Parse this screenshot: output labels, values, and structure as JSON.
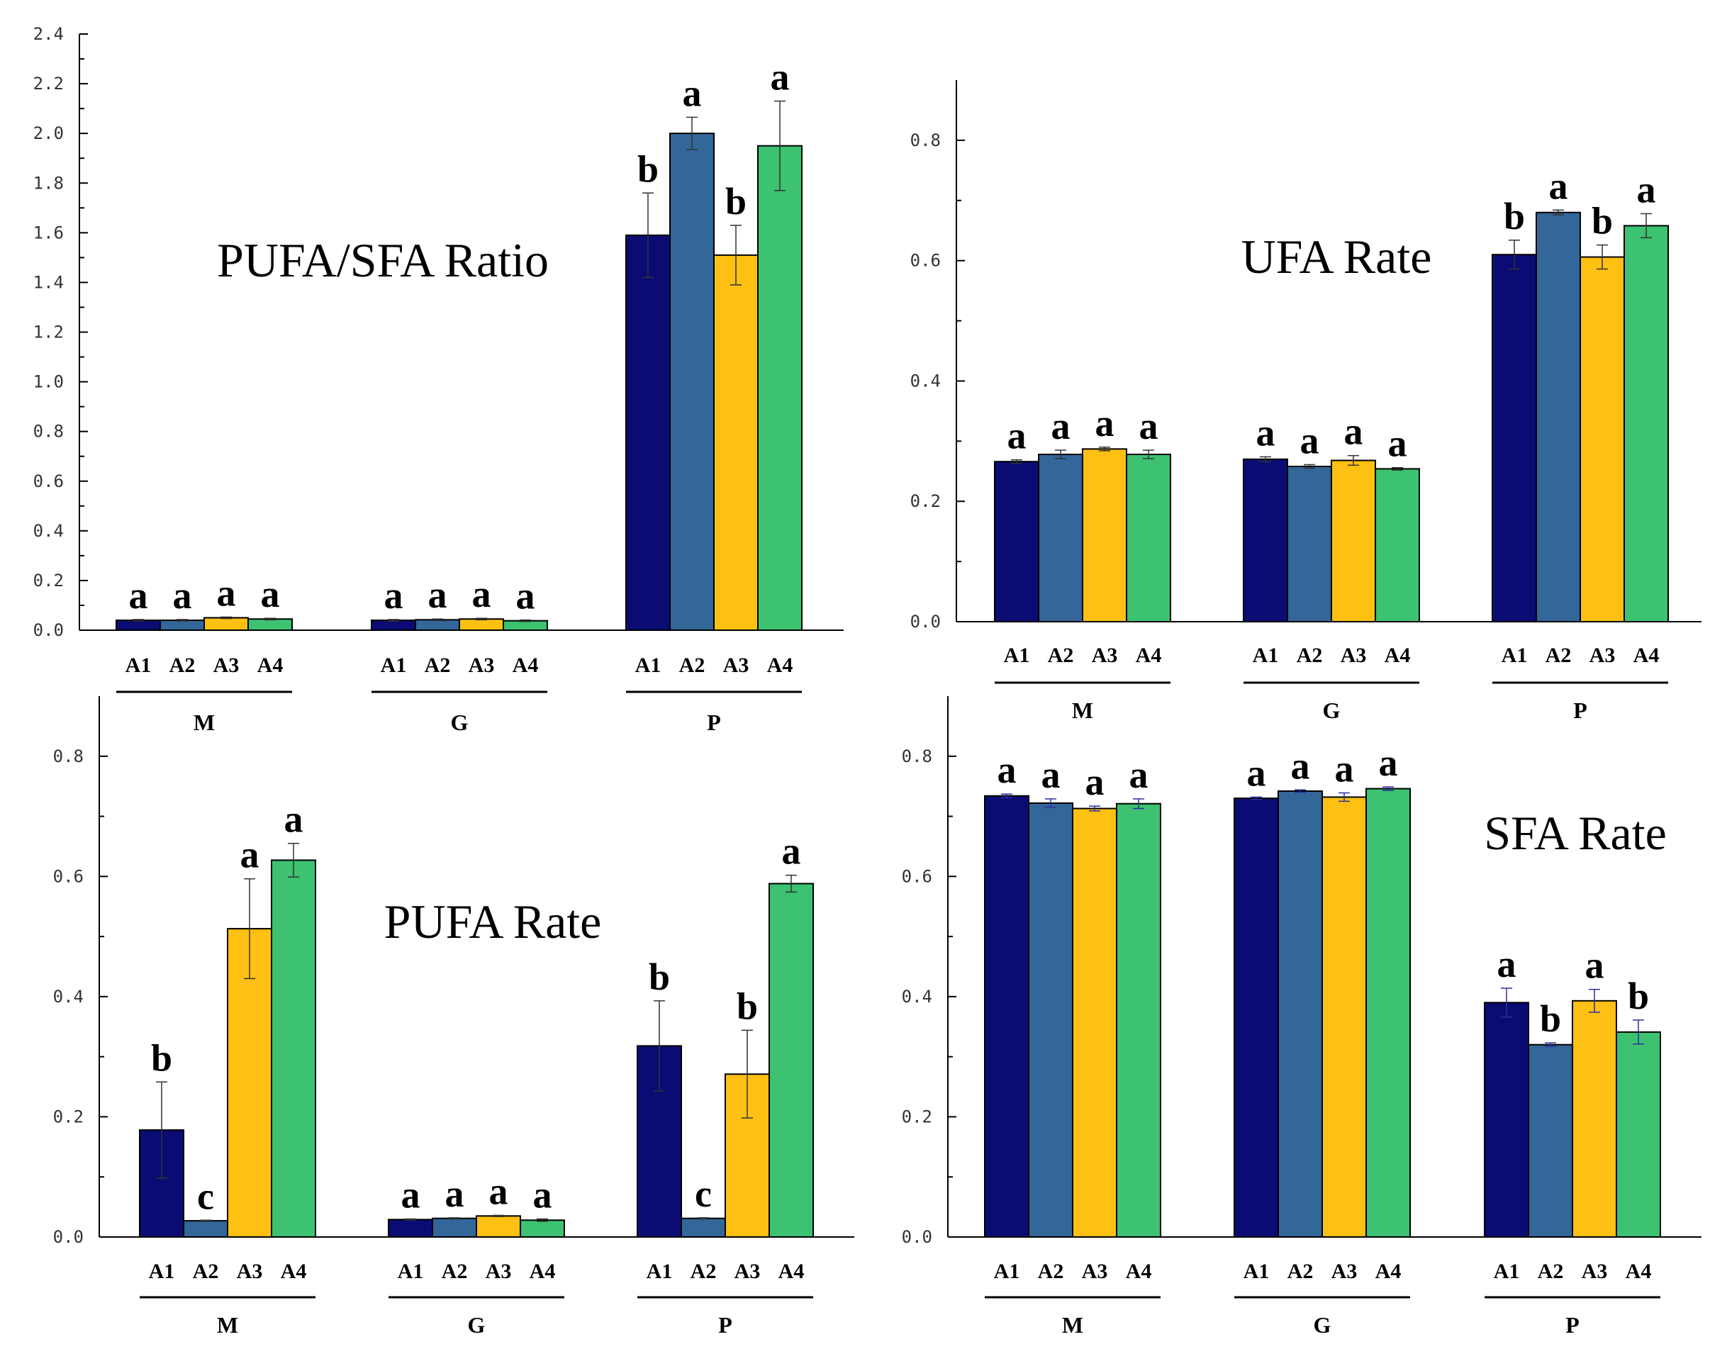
{
  "colors": {
    "A1": "#0B0C73",
    "A2": "#336699",
    "A3": "#FDC013",
    "A4": "#3CC270",
    "axis": "#000000",
    "errorbar_default": "#333333",
    "errorbar_sfa": "#2B2F9E"
  },
  "chart_data": [
    {
      "id": "pufa-sfa-ratio",
      "type": "bar",
      "title": "PUFA/SFA Ratio",
      "groups": [
        "M",
        "G",
        "P"
      ],
      "categories": [
        "A1",
        "A2",
        "A3",
        "A4"
      ],
      "ylim": [
        0,
        2.4
      ],
      "yticks": [
        0.0,
        0.2,
        0.4,
        0.6,
        0.8,
        1.0,
        1.2,
        1.4,
        1.6,
        1.8,
        2.0,
        2.2,
        2.4
      ],
      "ytick_labels": [
        "0.0",
        "0.2",
        "0.4",
        "0.6",
        "0.8",
        "1.0",
        "1.2",
        "1.4",
        "1.6",
        "1.8",
        "2.0",
        "2.2",
        "2.4"
      ],
      "values": [
        [
          0.04,
          0.04,
          0.05,
          0.045
        ],
        [
          0.04,
          0.042,
          0.045,
          0.038
        ],
        [
          1.59,
          2.0,
          1.51,
          1.95
        ]
      ],
      "errors": [
        [
          0.003,
          0.003,
          0.003,
          0.003
        ],
        [
          0.003,
          0.003,
          0.003,
          0.003
        ],
        [
          0.17,
          0.065,
          0.12,
          0.18
        ]
      ],
      "letters": [
        [
          "a",
          "a",
          "a",
          "a"
        ],
        [
          "a",
          "a",
          "a",
          "a"
        ],
        [
          "b",
          "a",
          "b",
          "a"
        ]
      ]
    },
    {
      "id": "ufa-rate",
      "type": "bar",
      "title": "UFA Rate",
      "groups": [
        "M",
        "G",
        "P"
      ],
      "categories": [
        "A1",
        "A2",
        "A3",
        "A4"
      ],
      "ylim": [
        0,
        0.9
      ],
      "yticks": [
        0.0,
        0.2,
        0.4,
        0.6,
        0.8
      ],
      "ytick_labels": [
        "0.0",
        "0.2",
        "0.4",
        "0.6",
        "0.8"
      ],
      "values": [
        [
          0.266,
          0.278,
          0.287,
          0.278
        ],
        [
          0.27,
          0.258,
          0.268,
          0.254
        ],
        [
          0.61,
          0.68,
          0.606,
          0.658
        ]
      ],
      "errors": [
        [
          0.003,
          0.007,
          0.003,
          0.007
        ],
        [
          0.004,
          0.003,
          0.008,
          0.002
        ],
        [
          0.024,
          0.004,
          0.02,
          0.02
        ]
      ],
      "letters": [
        [
          "a",
          "a",
          "a",
          "a"
        ],
        [
          "a",
          "a",
          "a",
          "a"
        ],
        [
          "b",
          "a",
          "b",
          "a"
        ]
      ]
    },
    {
      "id": "pufa-rate",
      "type": "bar",
      "title": "PUFA Rate",
      "groups": [
        "M",
        "G",
        "P"
      ],
      "categories": [
        "A1",
        "A2",
        "A3",
        "A4"
      ],
      "ylim": [
        0,
        0.9
      ],
      "yticks": [
        0.0,
        0.2,
        0.4,
        0.6,
        0.8
      ],
      "ytick_labels": [
        "0.0",
        "0.2",
        "0.4",
        "0.6",
        "0.8"
      ],
      "values": [
        [
          0.178,
          0.027,
          0.513,
          0.627
        ],
        [
          0.029,
          0.031,
          0.035,
          0.028
        ],
        [
          0.318,
          0.031,
          0.271,
          0.588
        ]
      ],
      "errors": [
        [
          0.08,
          0.001,
          0.083,
          0.028
        ],
        [
          0.001,
          0.001,
          0.001,
          0.002
        ],
        [
          0.075,
          0.001,
          0.073,
          0.014
        ]
      ],
      "letters": [
        [
          "b",
          "c",
          "a",
          "a"
        ],
        [
          "a",
          "a",
          "a",
          "a"
        ],
        [
          "b",
          "c",
          "b",
          "a"
        ]
      ]
    },
    {
      "id": "sfa-rate",
      "type": "bar",
      "title": "SFA Rate",
      "groups": [
        "M",
        "G",
        "P"
      ],
      "categories": [
        "A1",
        "A2",
        "A3",
        "A4"
      ],
      "ylim": [
        0,
        0.9
      ],
      "yticks": [
        0.0,
        0.2,
        0.4,
        0.6,
        0.8
      ],
      "ytick_labels": [
        "0.0",
        "0.2",
        "0.4",
        "0.6",
        "0.8"
      ],
      "values": [
        [
          0.734,
          0.722,
          0.713,
          0.721
        ],
        [
          0.73,
          0.742,
          0.732,
          0.746
        ],
        [
          0.39,
          0.32,
          0.393,
          0.341
        ]
      ],
      "errors": [
        [
          0.003,
          0.007,
          0.004,
          0.008
        ],
        [
          0.002,
          0.002,
          0.007,
          0.003
        ],
        [
          0.024,
          0.003,
          0.019,
          0.02
        ]
      ],
      "letters": [
        [
          "a",
          "a",
          "a",
          "a"
        ],
        [
          "a",
          "a",
          "a",
          "a"
        ],
        [
          "a",
          "b",
          "a",
          "b"
        ]
      ]
    }
  ]
}
